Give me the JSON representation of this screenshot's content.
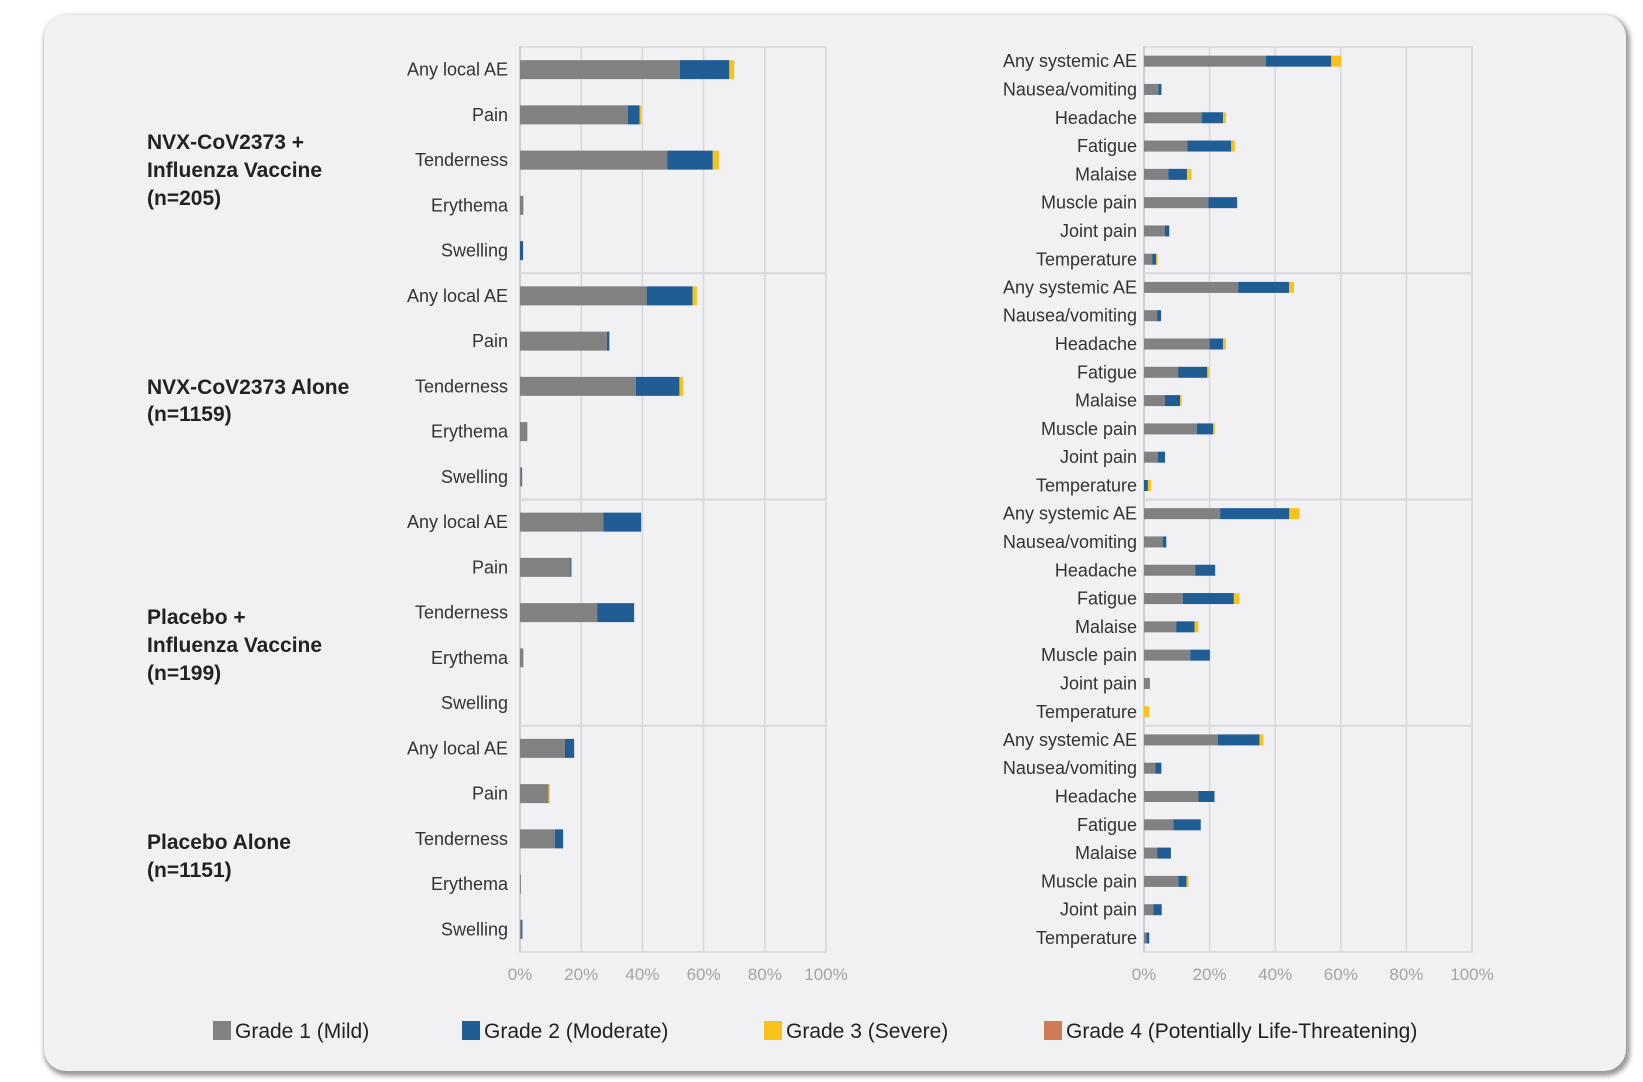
{
  "chart_data": [
    {
      "type": "bar",
      "orientation": "horizontal",
      "stacked": true,
      "panel": "local",
      "xlim": [
        0,
        100
      ],
      "x_ticks": [
        "0%",
        "20%",
        "40%",
        "60%",
        "80%",
        "100%"
      ],
      "grid": true,
      "groups": [
        {
          "label_lines": [
            "NVX-CoV2373 +",
            "Influenza Vaccine",
            "(n=205)"
          ],
          "categories": [
            "Any local AE",
            "Pain",
            "Tenderness",
            "Erythema",
            "Swelling"
          ],
          "grade1": [
            52.2,
            35.2,
            48.2,
            1.1,
            0
          ],
          "grade2": [
            16.2,
            3.9,
            14.8,
            0,
            1.0
          ],
          "grade3": [
            1.6,
            0.6,
            2.0,
            0,
            0
          ],
          "grade4": [
            0,
            0,
            0,
            0,
            0
          ]
        },
        {
          "label_lines": [
            "NVX-CoV2373 Alone",
            "(n=1159)"
          ],
          "categories": [
            "Any local AE",
            "Pain",
            "Tenderness",
            "Erythema",
            "Swelling"
          ],
          "grade1": [
            41.4,
            28.4,
            37.9,
            2.4,
            0.5
          ],
          "grade2": [
            15.0,
            0.8,
            14.2,
            0,
            0.2
          ],
          "grade3": [
            1.4,
            0,
            1.2,
            0,
            0
          ],
          "grade4": [
            0,
            0,
            0,
            0,
            0
          ]
        },
        {
          "label_lines": [
            "Placebo +",
            "Influenza Vaccine",
            "(n=199)"
          ],
          "categories": [
            "Any local AE",
            "Pain",
            "Tenderness",
            "Erythema",
            "Swelling"
          ],
          "grade1": [
            27.3,
            16.5,
            25.2,
            1.1,
            0
          ],
          "grade2": [
            12.3,
            0.3,
            12.1,
            0,
            0
          ],
          "grade3": [
            0,
            0,
            0,
            0,
            0
          ],
          "grade4": [
            0,
            0,
            0,
            0,
            0
          ]
        },
        {
          "label_lines": [
            "Placebo Alone",
            "(n=1151)"
          ],
          "categories": [
            "Any local AE",
            "Pain",
            "Tenderness",
            "Erythema",
            "Swelling"
          ],
          "grade1": [
            14.7,
            9.3,
            11.4,
            0.3,
            0.4
          ],
          "grade2": [
            3.0,
            0,
            2.7,
            0,
            0.4
          ],
          "grade3": [
            0,
            0.4,
            0,
            0,
            0
          ],
          "grade4": [
            0,
            0,
            0,
            0,
            0
          ]
        }
      ]
    },
    {
      "type": "bar",
      "orientation": "horizontal",
      "stacked": true,
      "panel": "systemic",
      "xlim": [
        0,
        100
      ],
      "x_ticks": [
        "0%",
        "20%",
        "40%",
        "60%",
        "80%",
        "100%"
      ],
      "grid": true,
      "groups": [
        {
          "categories": [
            "Any systemic AE",
            "Nausea/vomiting",
            "Headache",
            "Fatigue",
            "Malaise",
            "Muscle pain",
            "Joint pain",
            "Temperature"
          ],
          "grade1": [
            37.2,
            4.4,
            17.7,
            13.2,
            7.4,
            19.6,
            6.4,
            2.5
          ],
          "grade2": [
            19.9,
            0.9,
            6.4,
            13.4,
            5.7,
            8.8,
            1.3,
            1.2
          ],
          "grade3": [
            3.0,
            0,
            0.9,
            1.1,
            1.4,
            0,
            0,
            0.5
          ],
          "grade4": [
            0,
            0,
            0,
            0,
            0,
            0,
            0,
            0
          ]
        },
        {
          "categories": [
            "Any systemic AE",
            "Nausea/vomiting",
            "Headache",
            "Fatigue",
            "Malaise",
            "Muscle pain",
            "Joint pain",
            "Temperature"
          ],
          "grade1": [
            28.7,
            4.0,
            20.0,
            10.4,
            6.4,
            16.1,
            4.2,
            0
          ],
          "grade2": [
            15.5,
            1.2,
            4.1,
            8.9,
            4.6,
            5.0,
            2.2,
            1.2
          ],
          "grade3": [
            1.5,
            0,
            0.9,
            0.5,
            0.5,
            0.5,
            0,
            0.9
          ],
          "grade4": [
            0,
            0,
            0,
            0,
            0,
            0,
            0,
            0
          ]
        },
        {
          "categories": [
            "Any systemic AE",
            "Nausea/vomiting",
            "Headache",
            "Fatigue",
            "Malaise",
            "Muscle pain",
            "Joint pain",
            "Temperature"
          ],
          "grade1": [
            23.2,
            5.7,
            15.6,
            11.8,
            9.8,
            14.1,
            1.8,
            0
          ],
          "grade2": [
            21.1,
            1.1,
            6.1,
            15.6,
            5.6,
            6.0,
            0,
            0
          ],
          "grade3": [
            3.1,
            0,
            0,
            1.7,
            1.2,
            0,
            0,
            1.6
          ],
          "grade4": [
            0,
            0,
            0,
            0,
            0,
            0,
            0,
            0
          ]
        },
        {
          "categories": [
            "Any systemic AE",
            "Nausea/vomiting",
            "Headache",
            "Fatigue",
            "Malaise",
            "Muscle pain",
            "Joint pain",
            "Temperature"
          ],
          "grade1": [
            22.5,
            3.5,
            16.6,
            9.0,
            4.0,
            10.5,
            2.9,
            0.7
          ],
          "grade2": [
            12.7,
            1.8,
            4.9,
            8.3,
            4.2,
            2.5,
            2.5,
            0.9
          ],
          "grade3": [
            1.2,
            0,
            0,
            0,
            0,
            0.6,
            0,
            0
          ],
          "grade4": [
            0,
            0,
            0,
            0,
            0,
            0,
            0,
            0
          ]
        }
      ]
    }
  ],
  "legend": {
    "placement": "bottom",
    "items": [
      {
        "label": "Grade 1 (Mild)",
        "color": "#818181"
      },
      {
        "label": "Grade 2 (Moderate)",
        "color": "#1f5d94"
      },
      {
        "label": "Grade 3 (Severe)",
        "color": "#f6c21c"
      },
      {
        "label": "Grade 4 (Potentially Life-Threatening)",
        "color": "#cf7b56"
      }
    ]
  }
}
